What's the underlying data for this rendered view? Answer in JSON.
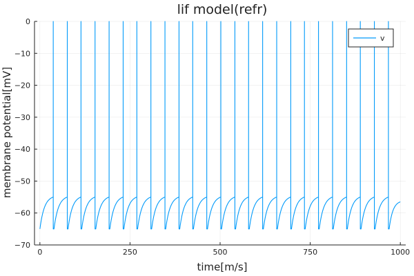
{
  "chart_data": {
    "type": "line",
    "title": "lif model(refr)",
    "xlabel": "time[m/s]",
    "ylabel": "membrane potential[mV]",
    "xlim": [
      -15,
      1015
    ],
    "ylim": [
      -70,
      0
    ],
    "xticks": [
      0,
      250,
      500,
      750,
      1000
    ],
    "yticks": [
      -70,
      -60,
      -50,
      -40,
      -30,
      -20,
      -10,
      0
    ],
    "grid": true,
    "legend_position": "top-right",
    "series": [
      {
        "name": "v",
        "color": "#009AFA",
        "v_rest": -65,
        "v_threshold": -55,
        "v_spike_peak": 0,
        "spike_times": [
          37,
          76,
          114,
          153,
          192,
          231,
          269,
          308,
          347,
          386,
          424,
          463,
          502,
          541,
          579,
          618,
          657,
          696,
          734,
          773,
          812,
          851,
          889,
          928,
          967
        ],
        "refractory_ms": 2,
        "t_end": 1000,
        "v_end": -56.5
      }
    ]
  }
}
